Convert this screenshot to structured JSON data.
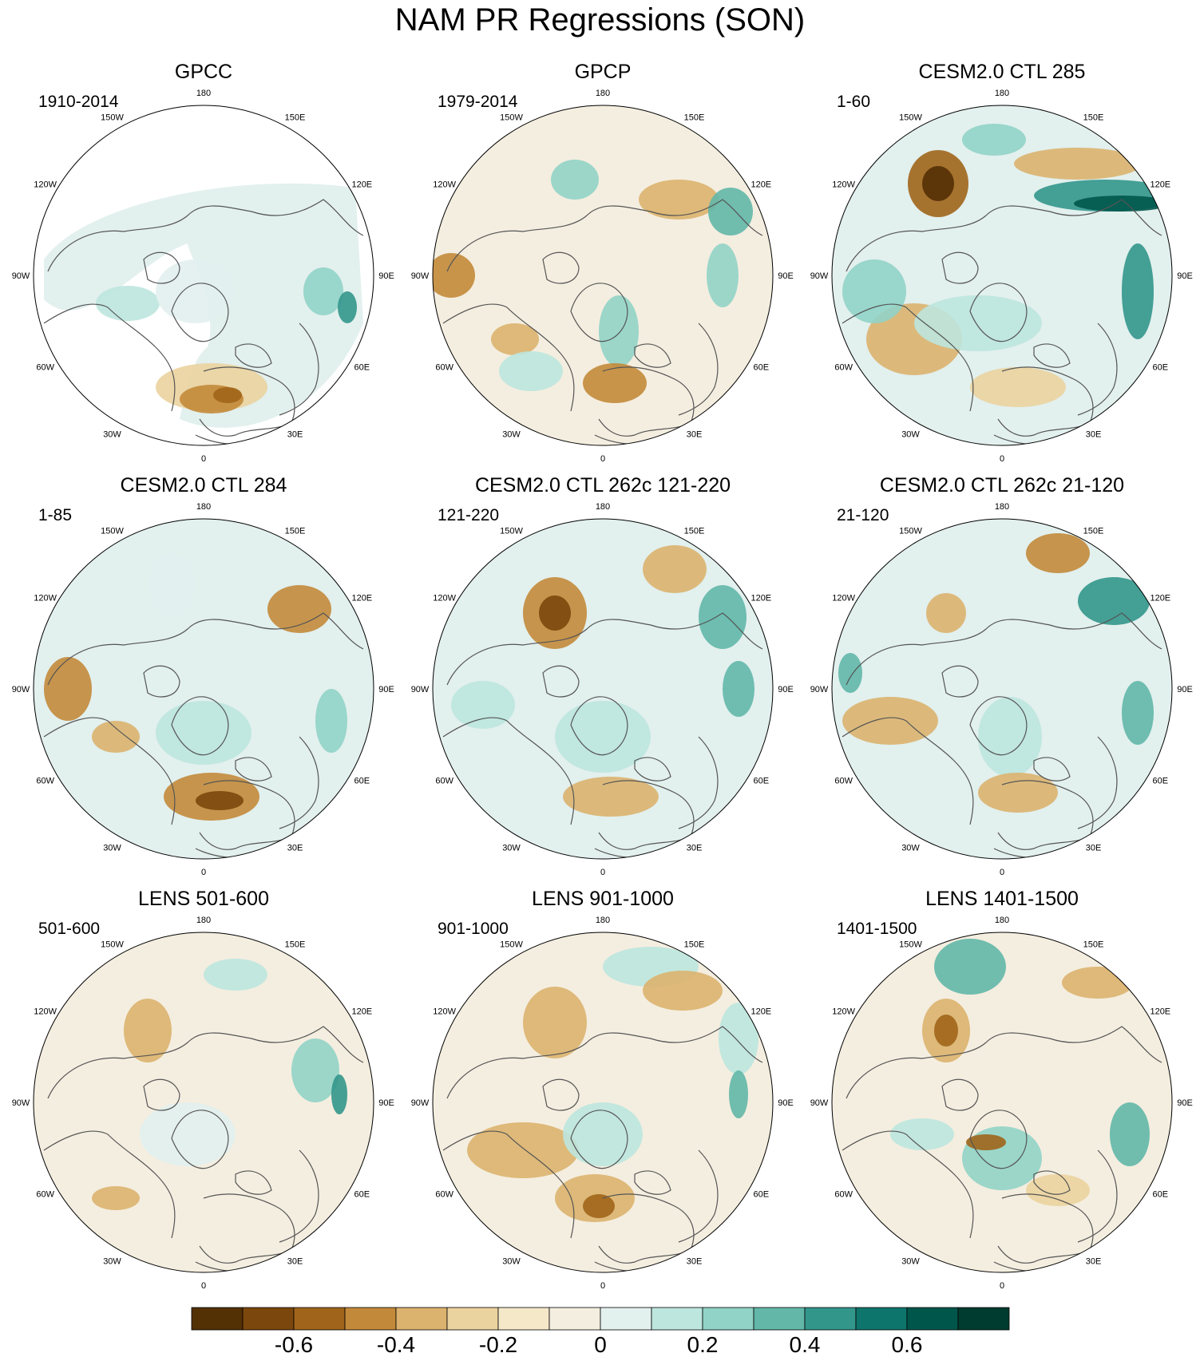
{
  "title": "NAM PR Regressions (SON)",
  "longitude_labels": [
    "180",
    "150E",
    "120E",
    "90E",
    "60E",
    "30E",
    "0",
    "30W",
    "60W",
    "90W",
    "120W",
    "150W"
  ],
  "panels": [
    {
      "title": "GPCC",
      "period": "1910-2014",
      "kind": "land-only"
    },
    {
      "title": "GPCP",
      "period": "1979-2014",
      "kind": "global"
    },
    {
      "title": "CESM2.0 CTL 285",
      "period": "1-60",
      "kind": "global"
    },
    {
      "title": "CESM2.0 CTL 284",
      "period": "1-85",
      "kind": "global"
    },
    {
      "title": "CESM2.0 CTL 262c 121-220",
      "period": "121-220",
      "kind": "global"
    },
    {
      "title": "CESM2.0 CTL 262c 21-120",
      "period": "21-120",
      "kind": "global"
    },
    {
      "title": "LENS 501-600",
      "period": "501-600",
      "kind": "global"
    },
    {
      "title": "LENS 901-1000",
      "period": "901-1000",
      "kind": "global"
    },
    {
      "title": "LENS 1401-1500",
      "period": "1401-1500",
      "kind": "global"
    }
  ],
  "colorbar": {
    "min": -0.8,
    "max": 0.8,
    "step": 0.1,
    "colors": [
      "#543005",
      "#7b470c",
      "#a0651a",
      "#c3893a",
      "#dbb26e",
      "#ebd39f",
      "#f5e8c9",
      "#f4eee0",
      "#e2f0ee",
      "#bde6de",
      "#91d3c7",
      "#62b7a8",
      "#33968b",
      "#0e756c",
      "#01564b",
      "#003c30"
    ],
    "tick_values": [
      -0.6,
      -0.4,
      -0.2,
      0,
      0.2,
      0.4,
      0.6
    ],
    "tick_labels": [
      "-0.6",
      "-0.4",
      "-0.2",
      "0",
      "0.2",
      "0.4",
      "0.6"
    ]
  }
}
